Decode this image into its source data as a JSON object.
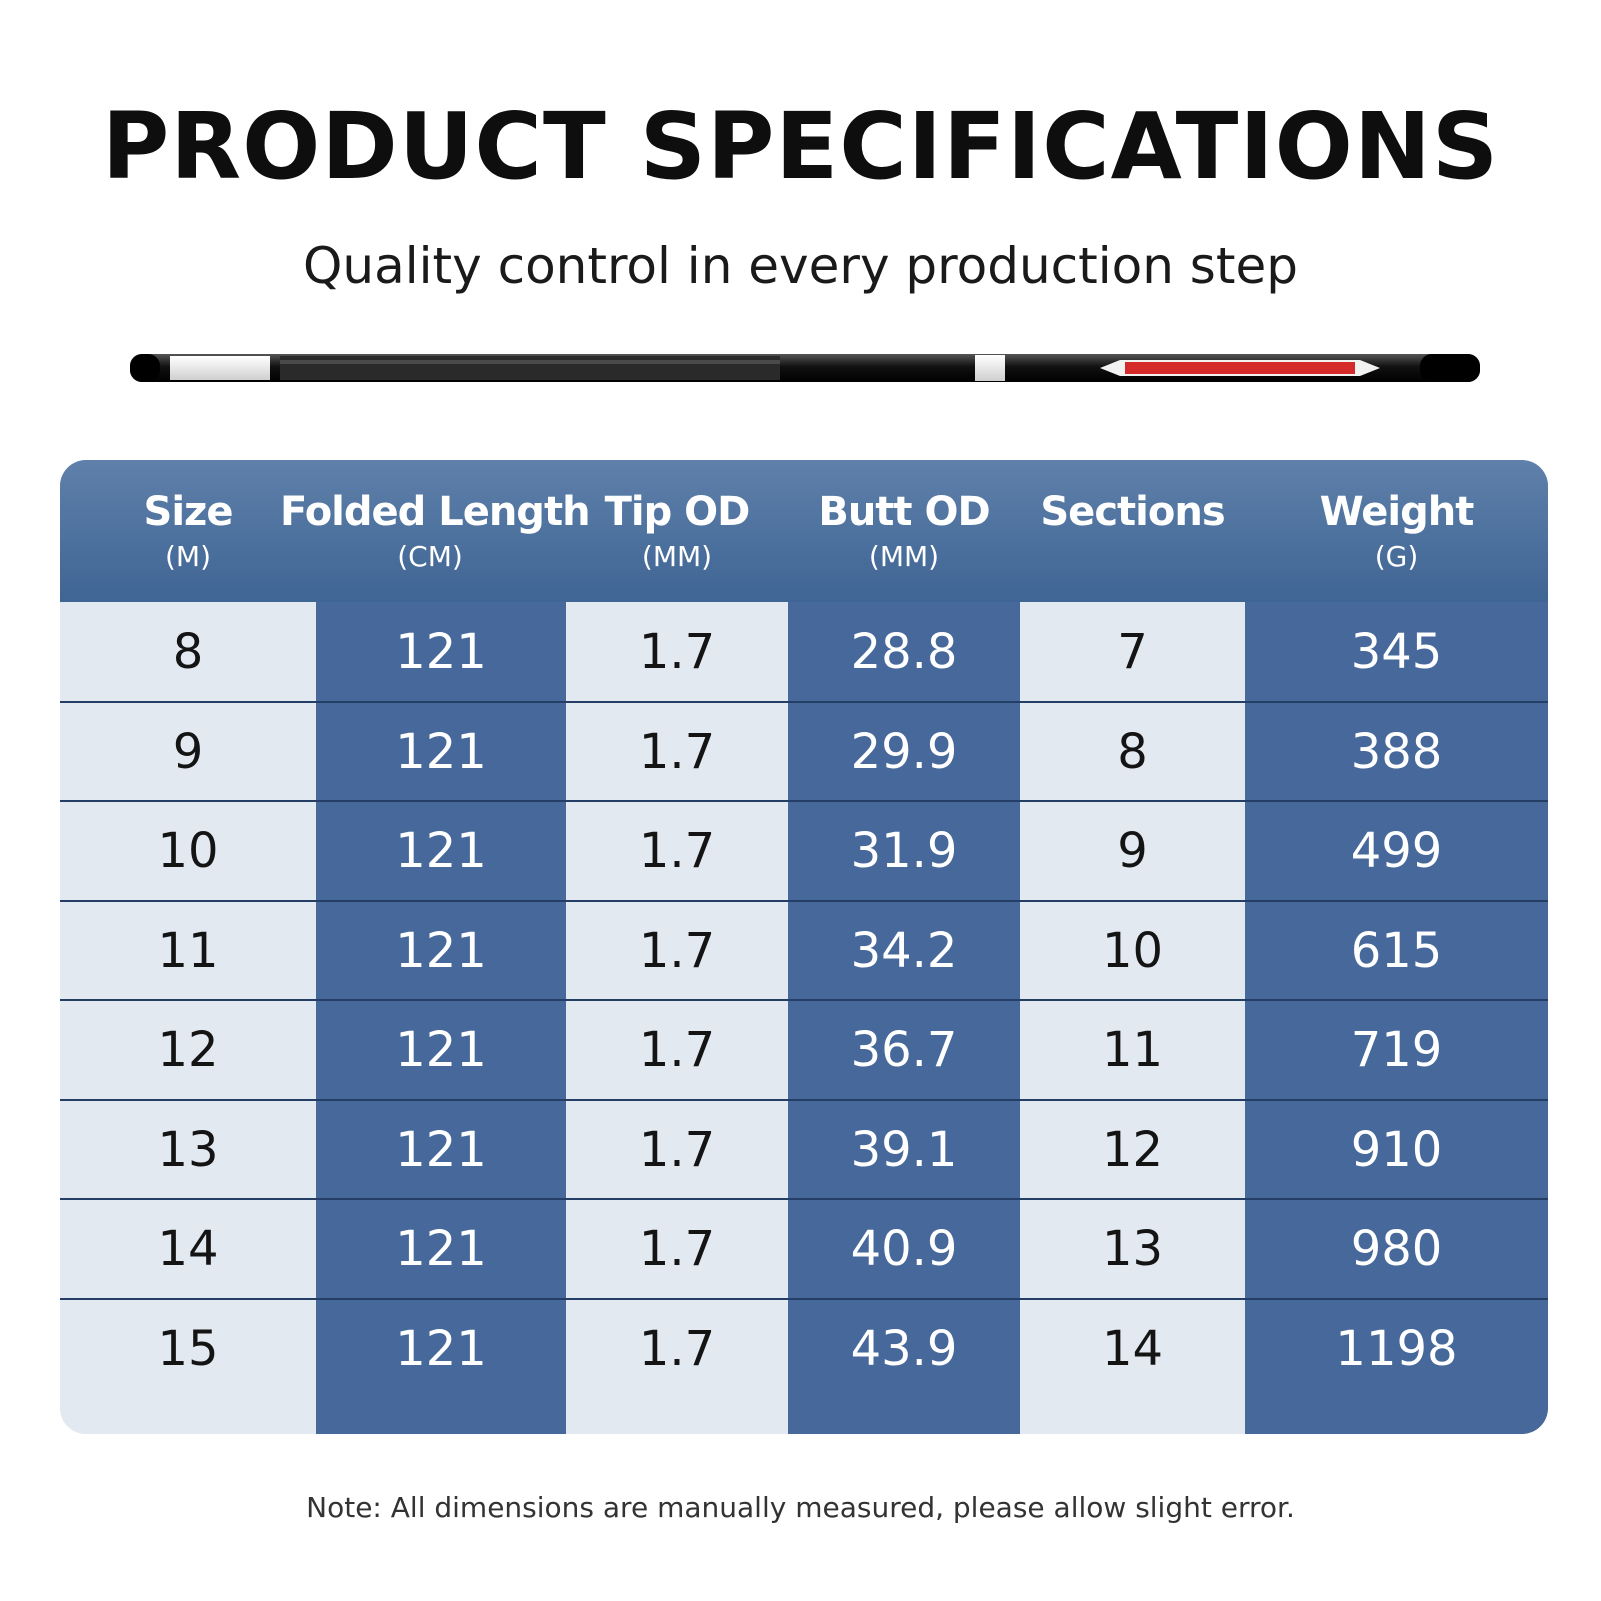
{
  "title": "PRODUCT SPECIFICATIONS",
  "subtitle": "Quality control in every production step",
  "table": {
    "columns": [
      {
        "name": "Size",
        "unit": "(M)"
      },
      {
        "name": "Folded Length",
        "unit": "(CM)"
      },
      {
        "name": "Tip OD",
        "unit": "(MM)"
      },
      {
        "name": "Butt OD",
        "unit": "(MM)"
      },
      {
        "name": "Sections",
        "unit": ""
      },
      {
        "name": "Weight",
        "unit": "(G)"
      }
    ],
    "rows": [
      [
        "8",
        "121",
        "1.7",
        "28.8",
        "7",
        "345"
      ],
      [
        "9",
        "121",
        "1.7",
        "29.9",
        "8",
        "388"
      ],
      [
        "10",
        "121",
        "1.7",
        "31.9",
        "9",
        "499"
      ],
      [
        "11",
        "121",
        "1.7",
        "34.2",
        "10",
        "615"
      ],
      [
        "12",
        "121",
        "1.7",
        "36.7",
        "11",
        "719"
      ],
      [
        "13",
        "121",
        "1.7",
        "39.1",
        "12",
        "910"
      ],
      [
        "14",
        "121",
        "1.7",
        "40.9",
        "13",
        "980"
      ],
      [
        "15",
        "121",
        "1.7",
        "43.9",
        "14",
        "1198"
      ]
    ]
  },
  "note": "Note:  All dimensions are manually measured, please allow slight error.",
  "colors": {
    "header": "#4a6d9c",
    "dark_column": "#46689a",
    "light_column": "#e3e9f1",
    "row_divider": "#243e66"
  },
  "images": {
    "rod": "fishing-rod-product-image"
  }
}
